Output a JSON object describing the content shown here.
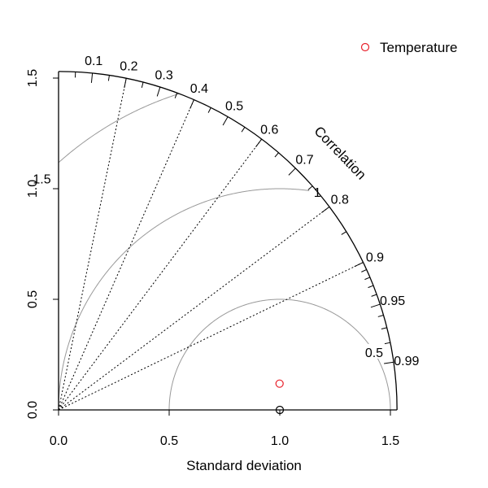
{
  "chart_data": {
    "type": "taylor",
    "title": "",
    "xlabel": "Standard deviation",
    "ylabel": "",
    "correlation_title": "Correlation",
    "sd_max": 1.53,
    "x_ticks": [
      "0.0",
      "0.5",
      "1.0",
      "1.5"
    ],
    "x_tick_values": [
      0,
      0.5,
      1.0,
      1.5
    ],
    "y_ticks": [
      "0.0",
      "0.5",
      "1.0",
      "1.5"
    ],
    "y_tick_values": [
      0,
      0.5,
      1.0,
      1.5
    ],
    "correlation_labels": [
      "0.1",
      "0.2",
      "0.3",
      "0.4",
      "0.5",
      "0.6",
      "0.7",
      "0.8",
      "0.9",
      "0.95",
      "0.99"
    ],
    "correlation_label_values": [
      0.1,
      0.2,
      0.3,
      0.4,
      0.5,
      0.6,
      0.7,
      0.8,
      0.9,
      0.95,
      0.99
    ],
    "correlation_dotted_lines": [
      0.2,
      0.4,
      0.6,
      0.8,
      0.9
    ],
    "rms_contours": [
      {
        "label": "0.5",
        "value": 0.5
      },
      {
        "label": "1",
        "value": 1.0
      },
      {
        "label": "1.5",
        "value": 1.5
      }
    ],
    "reference": {
      "sd": 1.0,
      "color": "#000000"
    },
    "series": [
      {
        "name": "Temperature",
        "sd": 1.006,
        "correlation": 0.993,
        "color": "#e8202a"
      }
    ],
    "legend": {
      "position": "top-right"
    },
    "colors": {
      "axis": "#000000",
      "contour": "#999999",
      "reference": "#000000"
    }
  }
}
